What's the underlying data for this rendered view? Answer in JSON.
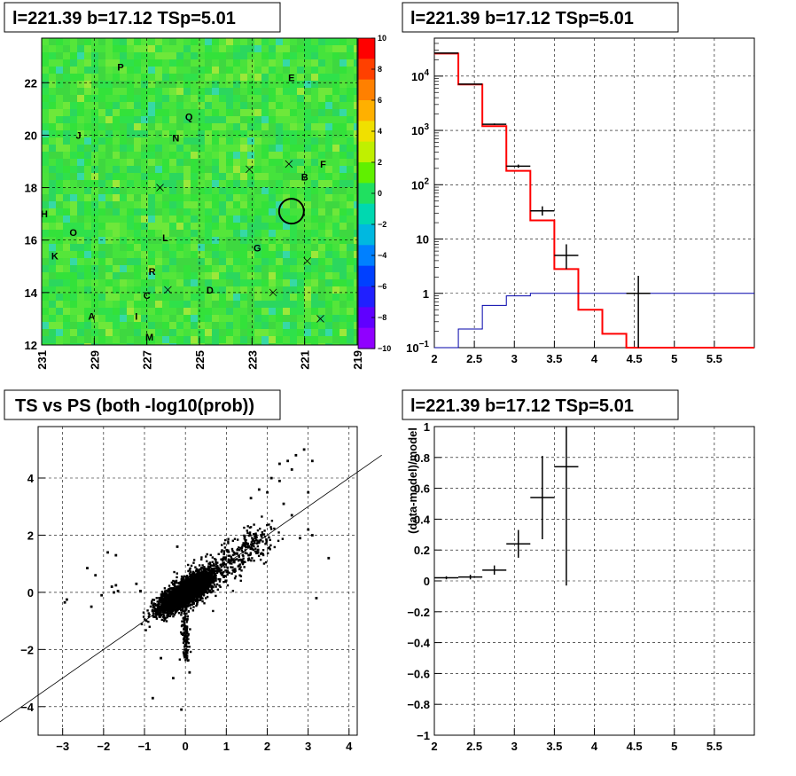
{
  "chart_data": [
    {
      "type": "heatmap",
      "title": "l=221.39 b=17.12 TSp=5.01",
      "xlim": [
        231,
        219
      ],
      "ylim": [
        12,
        23.7
      ],
      "x_ticks": [
        "231",
        "229",
        "227",
        "225",
        "223",
        "221",
        "219"
      ],
      "y_ticks": [
        "12",
        "14",
        "16",
        "18",
        "20",
        "22"
      ],
      "colorbar": {
        "range": [
          -10,
          10
        ],
        "ticks": [
          "10",
          "8",
          "6",
          "4",
          "2",
          "0",
          "-2",
          "-4",
          "-6",
          "-8",
          "-10"
        ]
      },
      "source_circle": {
        "x": 221.5,
        "y": 17.1
      },
      "labels": [
        {
          "t": "P",
          "x": 228.0,
          "y": 22.6
        },
        {
          "t": "E",
          "x": 221.5,
          "y": 22.2
        },
        {
          "t": "Q",
          "x": 225.4,
          "y": 20.7
        },
        {
          "t": "J",
          "x": 229.6,
          "y": 20.0
        },
        {
          "t": "N",
          "x": 225.9,
          "y": 19.9
        },
        {
          "t": "F",
          "x": 220.3,
          "y": 18.9
        },
        {
          "t": "B",
          "x": 221.0,
          "y": 18.4
        },
        {
          "t": "H",
          "x": 230.9,
          "y": 17.0
        },
        {
          "t": "O",
          "x": 229.8,
          "y": 16.3
        },
        {
          "t": "L",
          "x": 226.3,
          "y": 16.1
        },
        {
          "t": "G",
          "x": 222.8,
          "y": 15.7
        },
        {
          "t": "K",
          "x": 230.5,
          "y": 15.4
        },
        {
          "t": "R",
          "x": 226.8,
          "y": 14.8
        },
        {
          "t": "D",
          "x": 224.6,
          "y": 14.1
        },
        {
          "t": "C",
          "x": 227.0,
          "y": 13.9
        },
        {
          "t": "A",
          "x": 229.1,
          "y": 13.1
        },
        {
          "t": "I",
          "x": 227.4,
          "y": 13.1
        },
        {
          "t": "M",
          "x": 226.9,
          "y": 12.3
        }
      ],
      "crosses": [
        {
          "x": 223.1,
          "y": 18.7
        },
        {
          "x": 221.6,
          "y": 18.9
        },
        {
          "x": 226.5,
          "y": 18.0
        },
        {
          "x": 220.9,
          "y": 15.2
        },
        {
          "x": 226.2,
          "y": 14.1
        },
        {
          "x": 220.4,
          "y": 13.0
        },
        {
          "x": 222.2,
          "y": 14.0
        }
      ]
    },
    {
      "type": "bar",
      "title": "l=221.39 b=17.12 TSp=5.01",
      "log_y": true,
      "xlim": [
        2,
        6
      ],
      "ylim": [
        0.1,
        50000
      ],
      "x_ticks": [
        "2",
        "2.5",
        "3",
        "3.5",
        "4",
        "4.5",
        "5",
        "5.5"
      ],
      "y_ticks": [
        "10^-1",
        "1",
        "10",
        "10^2",
        "10^3",
        "10^4"
      ],
      "bin_edges": [
        2.0,
        2.3,
        2.6,
        2.9,
        3.2,
        3.5,
        3.8,
        4.1,
        4.4,
        4.7,
        5.0,
        5.3,
        5.6,
        6.0
      ],
      "series": [
        {
          "color": "#ff0000",
          "values": [
            26000,
            7000,
            1200,
            180,
            22,
            2.8,
            0.5,
            0.18,
            0.1,
            0.1,
            0.1,
            0.1,
            0.1
          ]
        },
        {
          "color": "#0000aa",
          "values": [
            0.1,
            0.22,
            0.6,
            0.9,
            1.0,
            1.0,
            1.0,
            1.0,
            1.0,
            1.0,
            1.0,
            1.0,
            1.0
          ]
        }
      ],
      "points": [
        {
          "x": 2.15,
          "y": 26500,
          "xerr": 0.15,
          "ylo": 26300,
          "yhi": 26700
        },
        {
          "x": 2.45,
          "y": 7100,
          "xerr": 0.15,
          "ylo": 7000,
          "yhi": 7200
        },
        {
          "x": 2.75,
          "y": 1300,
          "xerr": 0.15,
          "ylo": 1260,
          "yhi": 1340
        },
        {
          "x": 3.05,
          "y": 220,
          "xerr": 0.15,
          "ylo": 205,
          "yhi": 235
        },
        {
          "x": 3.35,
          "y": 33,
          "xerr": 0.15,
          "ylo": 27,
          "yhi": 40
        },
        {
          "x": 3.65,
          "y": 5,
          "xerr": 0.15,
          "ylo": 2.8,
          "yhi": 8
        },
        {
          "x": 4.55,
          "y": 1.0,
          "xerr": 0.15,
          "ylo": 0.1,
          "yhi": 2.1
        }
      ]
    },
    {
      "type": "scatter",
      "title": "TS vs PS (both -log10(prob))",
      "xlim": [
        -3.6,
        4.2
      ],
      "ylim": [
        -5,
        5.8
      ],
      "x_ticks": [
        "-3",
        "-2",
        "-1",
        "0",
        "1",
        "2",
        "3",
        "4"
      ],
      "y_ticks": [
        "-4",
        "-2",
        "0",
        "2",
        "4"
      ],
      "reference_line": {
        "slope": 1,
        "intercept": 0
      },
      "outliers": [
        [
          -2.9,
          -0.25
        ],
        [
          -2.95,
          -0.35
        ],
        [
          -2.4,
          0.85
        ],
        [
          -2.3,
          -0.5
        ],
        [
          -2.2,
          0.6
        ],
        [
          -2.05,
          -0.1
        ],
        [
          -1.8,
          0.2
        ],
        [
          -1.75,
          0.0
        ],
        [
          -1.7,
          0.25
        ],
        [
          -1.65,
          0.05
        ],
        [
          -1.9,
          1.4
        ],
        [
          -1.7,
          1.3
        ],
        [
          -1.2,
          0.3
        ],
        [
          -1.1,
          0.05
        ],
        [
          -0.8,
          -3.7
        ],
        [
          -0.1,
          -4.1
        ],
        [
          -0.3,
          -3.0
        ],
        [
          2.1,
          4.0
        ],
        [
          2.3,
          4.5
        ],
        [
          2.5,
          4.6
        ],
        [
          2.7,
          4.8
        ],
        [
          2.9,
          5.0
        ],
        [
          3.1,
          4.6
        ],
        [
          2.6,
          4.3
        ],
        [
          2.3,
          3.9
        ],
        [
          2.0,
          3.5
        ],
        [
          1.8,
          3.6
        ],
        [
          1.6,
          3.3
        ],
        [
          3.0,
          3.5
        ],
        [
          3.0,
          2.2
        ],
        [
          3.1,
          2.0
        ],
        [
          3.5,
          1.2
        ],
        [
          3.2,
          -0.2
        ],
        [
          2.8,
          1.9
        ],
        [
          2.6,
          2.7
        ],
        [
          2.4,
          3.1
        ],
        [
          -0.2,
          1.6
        ],
        [
          0.1,
          -2.8
        ],
        [
          -0.6,
          -2.3
        ]
      ]
    },
    {
      "type": "scatter",
      "title": "l=221.39 b=17.12 TSp=5.01",
      "ylabel": "(data-model)/model",
      "xlim": [
        2,
        6
      ],
      "ylim": [
        -1,
        1
      ],
      "x_ticks": [
        "2",
        "2.5",
        "3",
        "3.5",
        "4",
        "4.5",
        "5",
        "5.5"
      ],
      "y_ticks": [
        "-1",
        "-0.8",
        "-0.6",
        "-0.4",
        "-0.2",
        "0",
        "0.2",
        "0.4",
        "0.6",
        "0.8",
        "1"
      ],
      "points": [
        {
          "x": 2.15,
          "y": 0.02,
          "xerr": 0.15,
          "ylo": 0.01,
          "yhi": 0.03
        },
        {
          "x": 2.45,
          "y": 0.025,
          "xerr": 0.15,
          "ylo": 0.01,
          "yhi": 0.04
        },
        {
          "x": 2.75,
          "y": 0.07,
          "xerr": 0.15,
          "ylo": 0.04,
          "yhi": 0.1
        },
        {
          "x": 3.05,
          "y": 0.24,
          "xerr": 0.15,
          "ylo": 0.15,
          "yhi": 0.33
        },
        {
          "x": 3.35,
          "y": 0.54,
          "xerr": 0.15,
          "ylo": 0.27,
          "yhi": 0.81
        },
        {
          "x": 3.65,
          "y": 0.74,
          "xerr": 0.15,
          "ylo": -0.03,
          "yhi": 1.0
        }
      ]
    }
  ]
}
